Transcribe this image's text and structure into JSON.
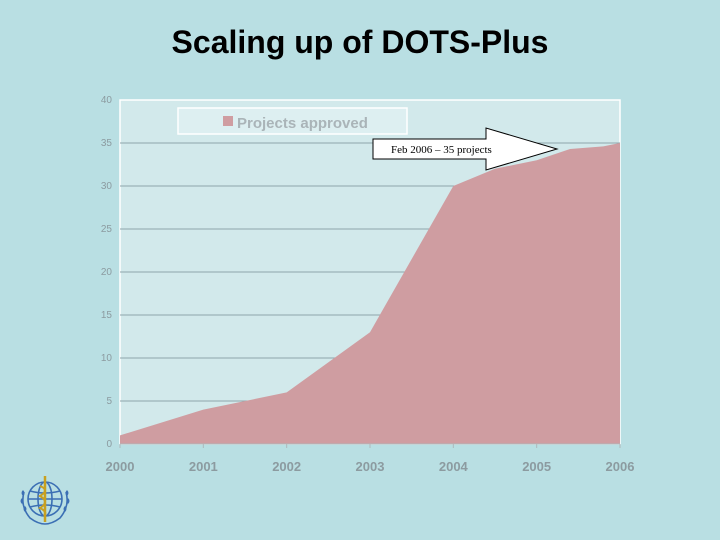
{
  "slide": {
    "title": "Scaling up of DOTS-Plus"
  },
  "chart_data": {
    "type": "area",
    "title": "",
    "xlabel": "",
    "ylabel": "",
    "x": [
      2000,
      2001,
      2002,
      2003,
      2004,
      2004.5,
      2005,
      2005.4,
      2005.8,
      2006
    ],
    "series": [
      {
        "name": "Projects approved",
        "values": [
          1,
          4,
          6,
          13,
          30,
          32,
          33,
          34.3,
          34.6,
          35
        ]
      }
    ],
    "x_tick_labels": [
      "2000",
      "2001",
      "2002",
      "2003",
      "2004",
      "2005",
      "2006"
    ],
    "y_ticks": [
      0,
      5,
      10,
      15,
      20,
      25,
      30,
      35,
      40
    ],
    "xlim": [
      2000,
      2006
    ],
    "ylim": [
      0,
      40
    ],
    "grid": true,
    "legend": "top",
    "annotation": {
      "text": "Feb 2006 – 35 projects"
    },
    "colors": {
      "fill": "#cf9da1",
      "plot_bg": "#d2e9eb",
      "grid": "#8fa5ab",
      "legend_swatch": "#cf9da1"
    }
  },
  "logo": {
    "icon": "who-emblem-icon"
  }
}
